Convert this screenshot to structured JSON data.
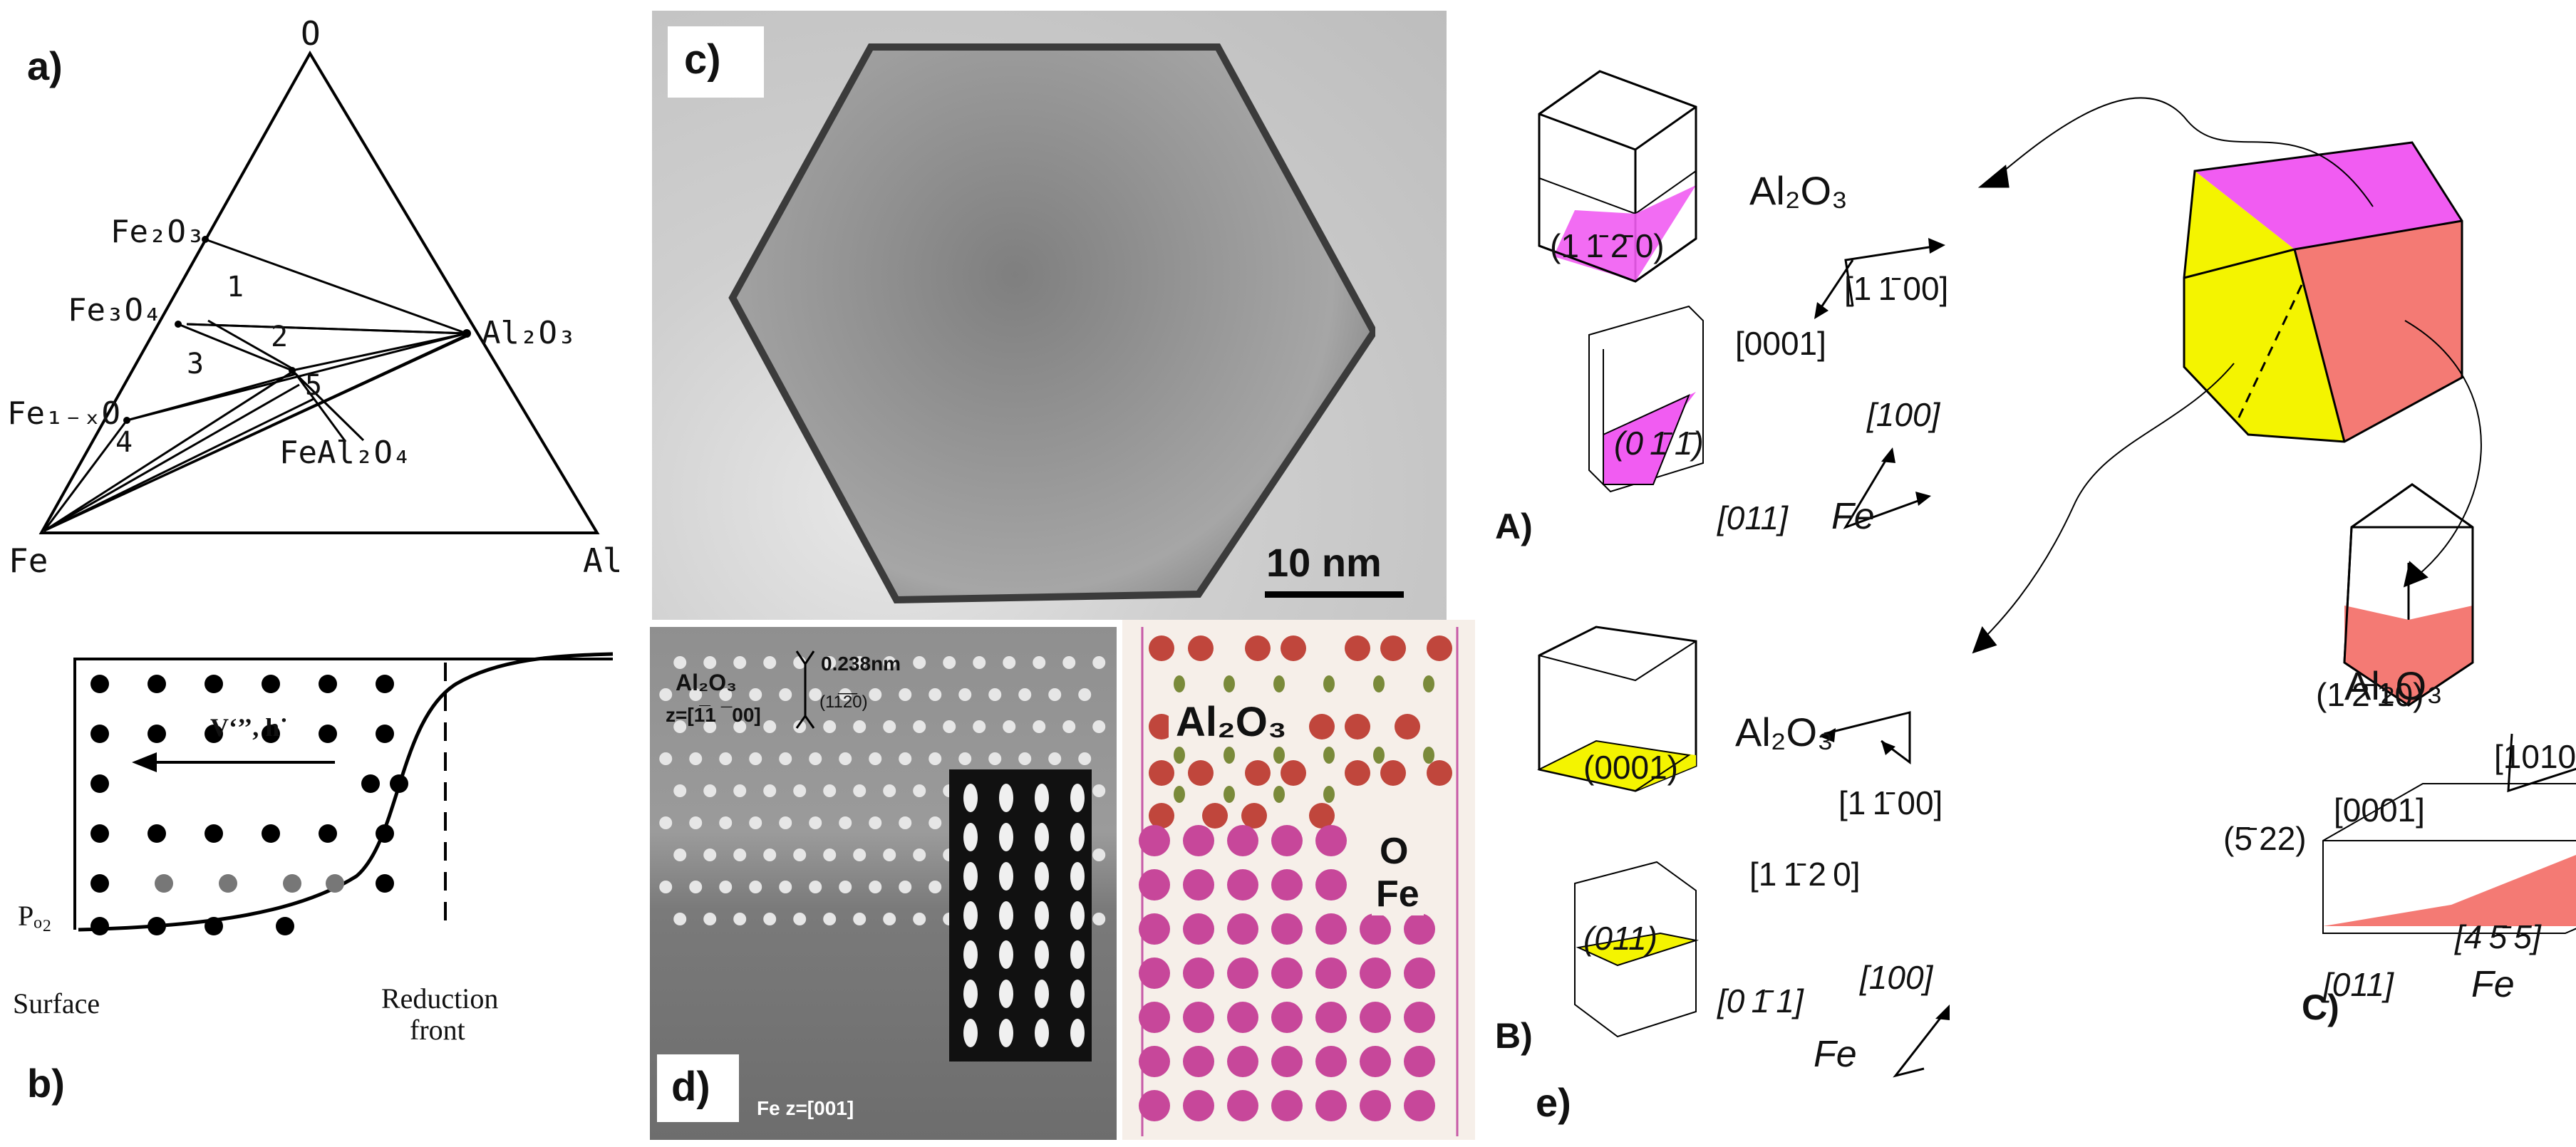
{
  "panel_a": {
    "label": "a)",
    "vertex_top": "O",
    "vertex_left": "Fe",
    "vertex_right": "Al",
    "phases": {
      "fe2o3": "Fe₂O₃",
      "fe3o4": "Fe₃O₄",
      "fe1xo": "Fe₁₋ₓO",
      "al2o3": "Al₂O₃",
      "feal2o4": "FeAl₂O₄"
    },
    "regions": [
      "1",
      "2",
      "3",
      "4",
      "5"
    ]
  },
  "panel_b": {
    "label": "b)",
    "po2": "Pₒ₂",
    "flux": "V‘’’, h˙",
    "surface": "Surface",
    "reduction_front_1": "Reduction",
    "reduction_front_2": "front"
  },
  "panel_c": {
    "label": "c)",
    "scale": "10 nm"
  },
  "panel_d": {
    "label": "d)",
    "al2o3": "Al₂O₃",
    "zone_al2o3": "z=[1̅1 ¯00]",
    "spacing": "0.238nm",
    "plane": "(11̅2̅0)",
    "fe_zone": "Fe z=[001]"
  },
  "panel_model": {
    "al2o3": "Al₂O₃",
    "o": "O",
    "fe": "Fe"
  },
  "panel_e": {
    "label": "e)",
    "A": {
      "label": "A)",
      "al2o3": "Al₂O₃",
      "plane_al": "(1 1̄ 2̄ 0)",
      "dir_1": "[1 1̄ 00]",
      "dir_2": "[0001]",
      "plane_fe": "(0 1̄ 1̄)",
      "dir_3": "[100]",
      "dir_4": "[011]",
      "fe": "Fe"
    },
    "B": {
      "label": "B)",
      "al2o3": "Al₂O₃",
      "plane_al": "(0001)",
      "dir_1": "[1 1̄ 00]",
      "dir_2": "[1 1̄ 2 0]",
      "plane_fe": "(011)",
      "dir_3": "[100]",
      "dir_4": "[0 1̄ 1]",
      "fe": "Fe"
    },
    "C": {
      "label": "C)",
      "al2o3": "Al₂O₃",
      "plane_al": "(1 2̄ 10)",
      "dir_1": "[1010]",
      "dir_2": "[0001]",
      "plane_fe": "(5̄ 22)",
      "dir_3": "[4 5̄ 5]",
      "dir_4": "[011]",
      "fe": "Fe"
    }
  },
  "colors": {
    "magenta": "#f15cf2",
    "yellow": "#f4f400",
    "salmon": "#f47a74",
    "fe_atom": "#c7479a",
    "al_atom": "#c0463c",
    "o_atom": "#7a8a3a"
  }
}
